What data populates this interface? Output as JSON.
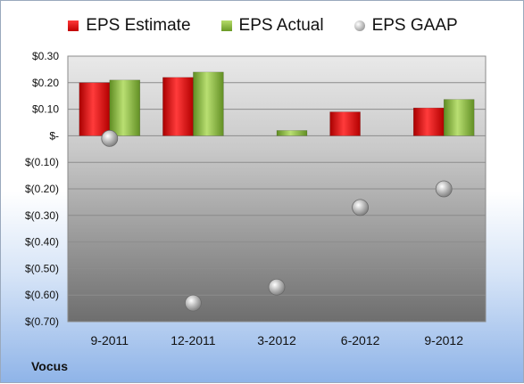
{
  "legend": {
    "estimate": "EPS Estimate",
    "actual": "EPS Actual",
    "gaap": "EPS GAAP"
  },
  "company": "Vocus",
  "colors": {
    "estimate": "#d31818",
    "actual": "#7fae35",
    "gaap": "#a8a8a8"
  },
  "chart_data": {
    "type": "bar",
    "categories": [
      "9-2011",
      "12-2011",
      "3-2012",
      "6-2012",
      "9-2012"
    ],
    "series": [
      {
        "name": "EPS Estimate",
        "kind": "bar",
        "values": [
          0.2,
          0.22,
          null,
          0.09,
          0.105
        ]
      },
      {
        "name": "EPS Actual",
        "kind": "bar",
        "values": [
          0.21,
          0.24,
          0.02,
          null,
          0.137
        ]
      },
      {
        "name": "EPS GAAP",
        "kind": "scatter",
        "values": [
          -0.01,
          -0.63,
          -0.57,
          -0.27,
          -0.2
        ]
      }
    ],
    "ylim": [
      -0.7,
      0.3
    ],
    "yticks": [
      0.3,
      0.2,
      0.1,
      0,
      -0.1,
      -0.2,
      -0.3,
      -0.4,
      -0.5,
      -0.6,
      -0.7
    ],
    "yticklabels": [
      "$0.30",
      "$0.20",
      "$0.10",
      "$-",
      "$(0.10)",
      "$(0.20)",
      "$(0.30)",
      "$(0.40)",
      "$(0.50)",
      "$(0.60)",
      "$(0.70)"
    ],
    "grid": true,
    "legend_position": "top"
  }
}
